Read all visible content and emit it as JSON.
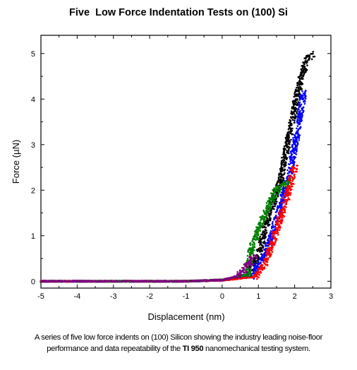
{
  "chart_data": {
    "type": "scatter",
    "title": "Five  Low Force Indentation Tests on (100) Si",
    "xlabel": "Displacement (nm)",
    "ylabel": "Force (µN)",
    "xlim": [
      -5,
      3
    ],
    "ylim": [
      -0.15,
      5.4
    ],
    "x_ticks": [
      "-5",
      "-4",
      "-3",
      "-2",
      "-1",
      "0",
      "1",
      "2",
      "3"
    ],
    "y_ticks": [
      "0",
      "1",
      "2",
      "3",
      "4",
      "5"
    ],
    "grid": false,
    "legend": "none",
    "series": [
      {
        "color": "#000000",
        "points": [
          [
            -5.0,
            0.0
          ],
          [
            -1.0,
            0.0
          ],
          [
            0.0,
            0.03
          ],
          [
            0.7,
            0.12
          ],
          [
            1.0,
            0.6
          ],
          [
            1.3,
            1.5
          ],
          [
            1.6,
            2.2
          ],
          [
            1.9,
            3.4
          ],
          [
            2.1,
            4.2
          ],
          [
            2.3,
            4.8
          ],
          [
            2.5,
            5.0
          ]
        ]
      },
      {
        "color": "#0000ff",
        "points": [
          [
            -5.0,
            0.0
          ],
          [
            -1.0,
            0.0
          ],
          [
            0.0,
            0.02
          ],
          [
            0.8,
            0.1
          ],
          [
            1.2,
            0.6
          ],
          [
            1.6,
            1.6
          ],
          [
            1.9,
            2.5
          ],
          [
            2.1,
            3.4
          ],
          [
            2.25,
            4.15
          ]
        ]
      },
      {
        "color": "#ff0000",
        "points": [
          [
            -5.0,
            0.0
          ],
          [
            -1.0,
            0.0
          ],
          [
            0.0,
            0.02
          ],
          [
            0.9,
            0.1
          ],
          [
            1.2,
            0.4
          ],
          [
            1.5,
            1.1
          ],
          [
            1.8,
            1.9
          ],
          [
            2.0,
            2.5
          ]
        ]
      },
      {
        "color": "#008000",
        "points": [
          [
            -5.0,
            0.0
          ],
          [
            -1.0,
            0.0
          ],
          [
            0.0,
            0.03
          ],
          [
            0.7,
            0.15
          ],
          [
            0.8,
            0.7
          ],
          [
            1.2,
            1.5
          ],
          [
            1.5,
            2.0
          ],
          [
            1.8,
            2.2
          ]
        ]
      },
      {
        "color": "#800080",
        "points": [
          [
            -5.0,
            0.0
          ],
          [
            -1.0,
            0.0
          ],
          [
            0.0,
            0.03
          ],
          [
            0.4,
            0.1
          ],
          [
            0.65,
            0.3
          ],
          [
            0.9,
            0.55
          ]
        ]
      }
    ]
  },
  "caption": {
    "line1": "A series of five low force indents on (100) Silicon showing the industry leading noise-floor",
    "line2_before": "performance and data repeatability of the",
    "line2_bold": "TI 950",
    "line2_after": "nanomechanical testing system."
  }
}
